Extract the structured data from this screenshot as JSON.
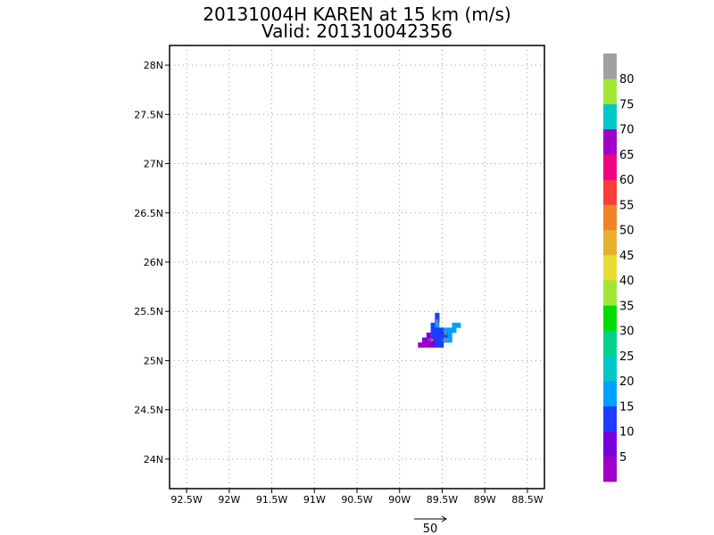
{
  "title": "20131004H KAREN at 15 km (m/s)",
  "subtitle": "Valid: 201310042356",
  "chart_data": {
    "type": "heatmap",
    "title": "20131004H KAREN at 15 km (m/s)",
    "subtitle": "Valid: 201310042356",
    "grid": true,
    "x_range": [
      -92.7,
      -88.3
    ],
    "y_range": [
      23.7,
      28.2
    ],
    "x_ticks": [
      {
        "v": -92.5,
        "label": "92.5W"
      },
      {
        "v": -92,
        "label": "92W"
      },
      {
        "v": -91.5,
        "label": "91.5W"
      },
      {
        "v": -91,
        "label": "91W"
      },
      {
        "v": -90.5,
        "label": "90.5W"
      },
      {
        "v": -90,
        "label": "90W"
      },
      {
        "v": -89.5,
        "label": "89.5W"
      },
      {
        "v": -89,
        "label": "89W"
      },
      {
        "v": -88.5,
        "label": "88.5W"
      }
    ],
    "y_ticks": [
      {
        "v": 24,
        "label": "24N"
      },
      {
        "v": 24.5,
        "label": "24.5N"
      },
      {
        "v": 25,
        "label": "25N"
      },
      {
        "v": 25.5,
        "label": "25.5N"
      },
      {
        "v": 26,
        "label": "26N"
      },
      {
        "v": 26.5,
        "label": "26.5N"
      },
      {
        "v": 27,
        "label": "27N"
      },
      {
        "v": 27.5,
        "label": "27.5N"
      },
      {
        "v": 28,
        "label": "28N"
      }
    ],
    "colorbar": {
      "labels": [
        "5",
        "10",
        "15",
        "20",
        "25",
        "30",
        "35",
        "40",
        "45",
        "50",
        "55",
        "60",
        "65",
        "70",
        "75",
        "80"
      ],
      "colors": [
        "#a000c8",
        "#7800dc",
        "#1e3cff",
        "#00a0ff",
        "#00c8c8",
        "#00d28c",
        "#00dc00",
        "#a0e632",
        "#e6dc32",
        "#e6af2d",
        "#f08228",
        "#fa3c3c",
        "#f00082",
        "#a000c8",
        "#00c8c8",
        "#a0e632",
        "#a0a0a0"
      ]
    },
    "cells": [
      {
        "lon": -89.56,
        "lat": 25.46,
        "v": 12
      },
      {
        "lon": -89.56,
        "lat": 25.41,
        "v": 12
      },
      {
        "lon": -89.61,
        "lat": 25.36,
        "v": 12
      },
      {
        "lon": -89.56,
        "lat": 25.36,
        "v": 18
      },
      {
        "lon": -89.61,
        "lat": 25.31,
        "v": 12
      },
      {
        "lon": -89.56,
        "lat": 25.31,
        "v": 12
      },
      {
        "lon": -89.51,
        "lat": 25.31,
        "v": 12
      },
      {
        "lon": -89.46,
        "lat": 25.31,
        "v": 18
      },
      {
        "lon": -89.36,
        "lat": 25.36,
        "v": 18
      },
      {
        "lon": -89.31,
        "lat": 25.36,
        "v": 18
      },
      {
        "lon": -89.41,
        "lat": 25.31,
        "v": 18
      },
      {
        "lon": -89.36,
        "lat": 25.31,
        "v": 18
      },
      {
        "lon": -89.66,
        "lat": 25.26,
        "v": 8
      },
      {
        "lon": -89.61,
        "lat": 25.26,
        "v": 12
      },
      {
        "lon": -89.56,
        "lat": 25.26,
        "v": 12
      },
      {
        "lon": -89.51,
        "lat": 25.26,
        "v": 12
      },
      {
        "lon": -89.46,
        "lat": 25.26,
        "v": 12
      },
      {
        "lon": -89.41,
        "lat": 25.26,
        "v": 18
      },
      {
        "lon": -89.71,
        "lat": 25.21,
        "v": 8
      },
      {
        "lon": -89.66,
        "lat": 25.21,
        "v": 4
      },
      {
        "lon": -89.61,
        "lat": 25.21,
        "v": 8
      },
      {
        "lon": -89.56,
        "lat": 25.21,
        "v": 12
      },
      {
        "lon": -89.51,
        "lat": 25.21,
        "v": 12
      },
      {
        "lon": -89.46,
        "lat": 25.21,
        "v": 18
      },
      {
        "lon": -89.41,
        "lat": 25.21,
        "v": 18
      },
      {
        "lon": -89.76,
        "lat": 25.16,
        "v": 4
      },
      {
        "lon": -89.71,
        "lat": 25.16,
        "v": 4
      },
      {
        "lon": -89.66,
        "lat": 25.16,
        "v": 4
      },
      {
        "lon": -89.61,
        "lat": 25.16,
        "v": 8
      },
      {
        "lon": -89.56,
        "lat": 25.16,
        "v": 12
      },
      {
        "lon": -89.51,
        "lat": 25.16,
        "v": 12
      }
    ],
    "vectors": [
      {
        "lon": -89.56,
        "lat": 25.36,
        "u": 0,
        "v": 9
      },
      {
        "lon": -89.51,
        "lat": 25.21,
        "u": 10,
        "v": 0
      },
      {
        "lon": -89.66,
        "lat": 25.21,
        "u": 8,
        "v": 0
      },
      {
        "lon": -89.46,
        "lat": 25.26,
        "u": 0,
        "v": 5
      }
    ],
    "reference_vector": {
      "label": "50",
      "speed": 50
    }
  }
}
